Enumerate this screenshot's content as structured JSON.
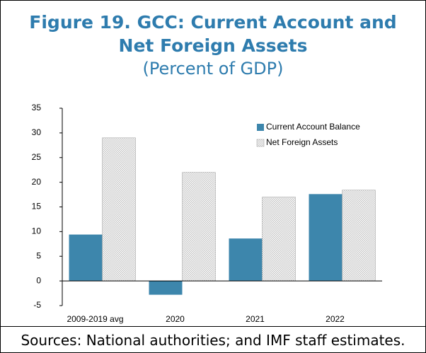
{
  "chart_data": {
    "type": "bar",
    "title": "Figure 19. GCC: Current Account and Net Foreign Assets",
    "subtitle": "(Percent of GDP)",
    "source": "Sources: National authorities; and IMF staff estimates.",
    "categories": [
      "2009-2019 avg",
      "2020",
      "2021",
      "2022"
    ],
    "series": [
      {
        "name": "Current Account Balance",
        "color": "#3d86ac",
        "values": [
          9.4,
          -2.8,
          8.6,
          17.6
        ]
      },
      {
        "name": "Net Foreign Assets",
        "color": "#c4c4c4",
        "hatch": true,
        "values": [
          29,
          22,
          17,
          18.4
        ]
      }
    ],
    "ylim": [
      -5,
      35
    ],
    "yticks": [
      -5,
      0,
      5,
      10,
      15,
      20,
      25,
      30,
      35
    ],
    "legend": "upper right"
  }
}
